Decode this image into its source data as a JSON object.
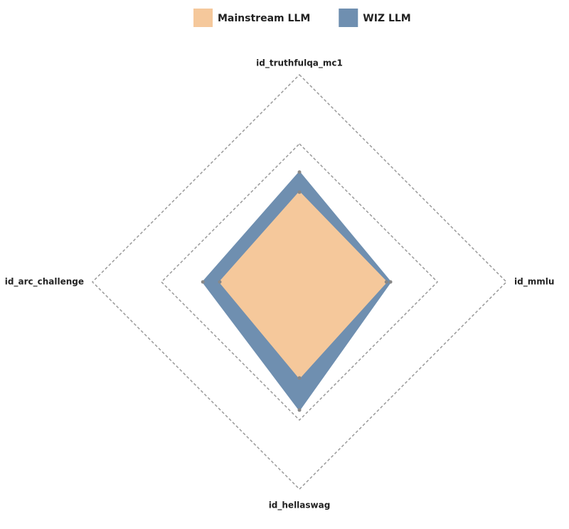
{
  "chart_data": {
    "type": "radar",
    "categories": [
      "id_truthfulqa_mc1",
      "id_mmlu",
      "id_hellaswag",
      "id_arc_challenge"
    ],
    "series": [
      {
        "name": "WIZ LLM",
        "color": "#6f8fb0",
        "values": [
          0.318,
          0.264,
          0.371,
          0.28
        ]
      },
      {
        "name": "Mainstream LLM",
        "color": "#f5c89b",
        "values": [
          0.26,
          0.252,
          0.278,
          0.231
        ]
      }
    ],
    "legend_order": [
      1,
      0
    ],
    "ylim": [
      0,
      0.6
    ],
    "yticks": [
      0.2,
      0.4,
      0.6
    ],
    "grid": true
  }
}
